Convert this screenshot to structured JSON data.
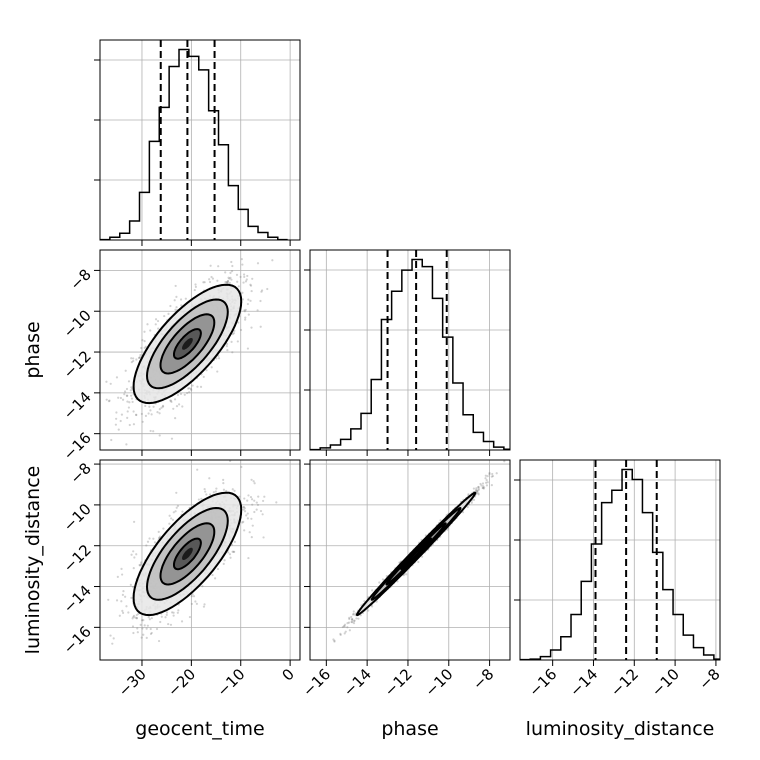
{
  "chart_data": {
    "type": "corner",
    "parameters": [
      "geocent_time",
      "phase",
      "luminosity_distance"
    ],
    "ranges": {
      "geocent_time": [
        -38.5,
        2.0
      ],
      "phase": [
        -16.8,
        -7.0
      ],
      "luminosity_distance": [
        -17.6,
        -7.8
      ]
    },
    "ticks": {
      "geocent_time": [
        -30,
        -20,
        -10,
        0
      ],
      "phase": [
        -16,
        -14,
        -12,
        -10,
        -8
      ],
      "luminosity_distance": [
        -16,
        -14,
        -12,
        -10,
        -8
      ]
    },
    "tick_labels": {
      "geocent_time": [
        "−30",
        "−20",
        "−10",
        "0"
      ],
      "phase": [
        "−16",
        "−14",
        "−12",
        "−10",
        "−8"
      ],
      "luminosity_distance": [
        "−16",
        "−14",
        "−12",
        "−10",
        "−8"
      ]
    },
    "medians": {
      "geocent_time": -20.8,
      "phase": -11.6,
      "luminosity_distance": -12.4
    },
    "quantiles": {
      "geocent_time": [
        -26.2,
        -20.8,
        -15.3
      ],
      "phase": [
        -13.0,
        -11.6,
        -10.1
      ],
      "luminosity_distance": [
        -13.9,
        -12.4,
        -10.9
      ]
    },
    "histograms": {
      "geocent_time": {
        "edges": [
          -38.5,
          -36.5,
          -34.5,
          -32.5,
          -30.5,
          -28.5,
          -26.5,
          -24.5,
          -22.5,
          -20.5,
          -18.5,
          -16.5,
          -14.5,
          -12.5,
          -10.5,
          -8.5,
          -6.5,
          -4.5,
          -2.5,
          -0.5
        ],
        "counts": [
          0.5,
          4,
          10,
          28,
          70,
          145,
          195,
          255,
          280,
          270,
          250,
          190,
          140,
          80,
          45,
          20,
          11,
          4,
          0.5
        ]
      },
      "phase": {
        "edges": [
          -16.8,
          -16.3,
          -15.8,
          -15.3,
          -14.8,
          -14.3,
          -13.8,
          -13.3,
          -12.8,
          -12.3,
          -11.8,
          -11.3,
          -10.8,
          -10.3,
          -9.8,
          -9.3,
          -8.8,
          -8.3,
          -7.8,
          -7.3,
          -7.0
        ],
        "counts": [
          0.5,
          3,
          7,
          15,
          30,
          52,
          100,
          185,
          225,
          255,
          270,
          260,
          215,
          160,
          95,
          50,
          25,
          12,
          4,
          1
        ]
      },
      "luminosity_distance": {
        "edges": [
          -17.6,
          -17.1,
          -16.6,
          -16.1,
          -15.6,
          -15.1,
          -14.6,
          -14.1,
          -13.6,
          -13.1,
          -12.6,
          -12.1,
          -11.6,
          -11.1,
          -10.6,
          -10.1,
          -9.6,
          -9.1,
          -8.6,
          -8.1,
          -7.8
        ],
        "counts": [
          0.5,
          1,
          4,
          12,
          28,
          55,
          95,
          140,
          190,
          205,
          230,
          218,
          178,
          130,
          85,
          55,
          30,
          15,
          6,
          1
        ]
      }
    },
    "correlations": {
      "phase_vs_geocent_time": 0.72,
      "luminosity_distance_vs_geocent_time": 0.72,
      "luminosity_distance_vs_phase": 0.995
    },
    "xlabels": [
      "geocent_time",
      "phase",
      "luminosity_distance"
    ],
    "ylabels": [
      "",
      "phase",
      "luminosity_distance"
    ],
    "grid": true,
    "colors": {
      "scatter": "#7f7f7f",
      "line": "#000000",
      "grid": "#b0b0b0"
    }
  }
}
